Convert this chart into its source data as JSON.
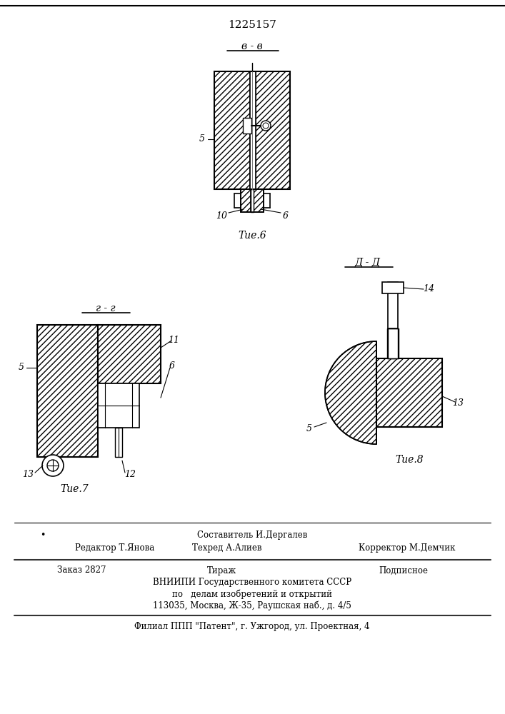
{
  "patent_number": "1225157",
  "section_label_bb": "в - в",
  "section_label_gg": "г - г",
  "section_label_dd": "Д - Д",
  "fig6_label": "Τие.6",
  "fig7_label": "Τие.7",
  "fig8_label": "Τие.8",
  "footer_line1_left": "•",
  "footer_line1_center": "Составитель И.Дергалев",
  "footer_line2_left": "Редактор Т.Янова",
  "footer_line2_center": "Техред А.Алиев",
  "footer_line2_right": "Корректор М.Демчик",
  "footer_order": "Заказ 2827",
  "footer_tirazh": "Тираж",
  "footer_podpisnoe": "Подписное",
  "footer_vniiipi": "ВНИИПИ Государственного комитета СССР",
  "footer_po": "по   делам изобретений и открытий",
  "footer_address": "113035, Москва, Ж-35, Раушская наб., д. 4/5",
  "footer_filial": "Филиал ППП \"Патент\", г. Ужгород, ул. Проектная, 4",
  "hatch_color": "#888888",
  "line_color": "#000000",
  "bg_color": "#ffffff",
  "text_color": "#000000"
}
